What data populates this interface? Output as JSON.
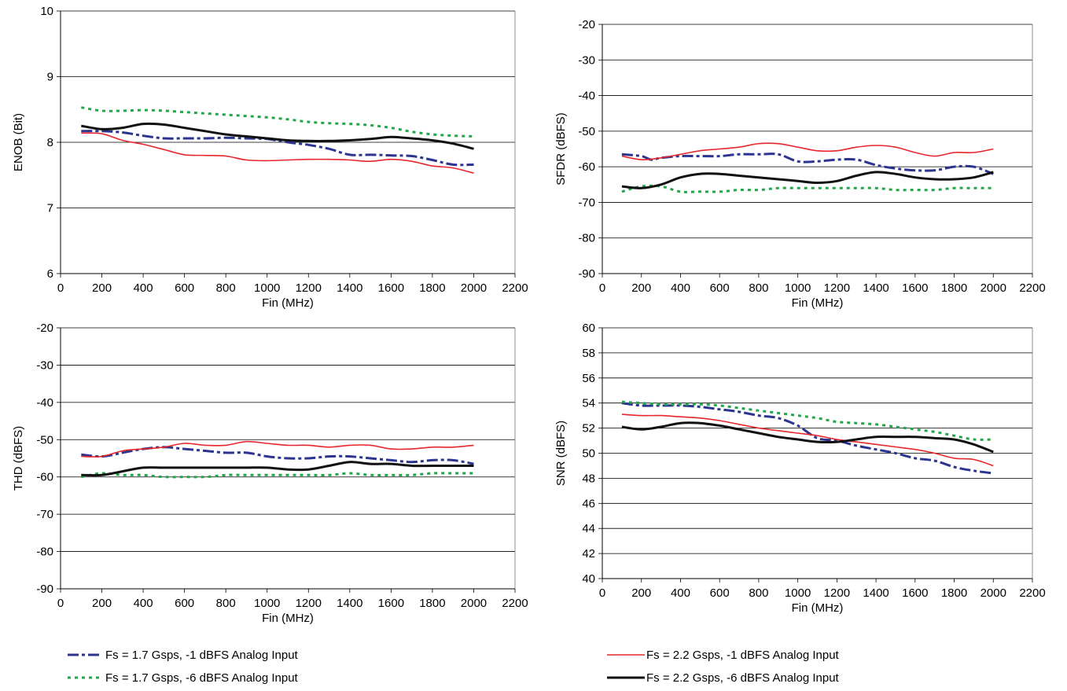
{
  "legend": [
    {
      "name": "Fs = 1.7 Gsps, -1 dBFS Analog Input",
      "color": "#2b3590",
      "style": "dash"
    },
    {
      "name": "Fs = 1.7 Gsps, -6 dBFS Analog Input",
      "color": "#22a64a",
      "style": "dot"
    },
    {
      "name": "Fs = 2.2 Gsps, -1 dBFS Analog Input",
      "color": "#e8262b",
      "style": "solid"
    },
    {
      "name": "Fs = 2.2 Gsps, -6 dBFS Analog Input",
      "color": "#111111",
      "style": "thick"
    }
  ],
  "chart_data": [
    {
      "type": "line",
      "title": "",
      "xlabel": "Fin (MHz)",
      "ylabel": "ENOB (Bit)",
      "xlim": [
        0,
        2200
      ],
      "ylim": [
        6,
        10
      ],
      "xticks": [
        "0",
        "200",
        "400",
        "600",
        "800",
        "1000",
        "1200",
        "1400",
        "1600",
        "1800",
        "2000",
        "2200"
      ],
      "yticks": [
        "6",
        "7",
        "8",
        "9",
        "10"
      ],
      "grid": "horizontal",
      "series": [
        {
          "name": "Fs = 1.7 Gsps, -1 dBFS Analog Input",
          "x": [
            100,
            200,
            300,
            400,
            500,
            600,
            700,
            800,
            900,
            1000,
            1100,
            1200,
            1300,
            1400,
            1500,
            1600,
            1700,
            1800,
            1900,
            2000
          ],
          "values": [
            8.17,
            8.17,
            8.15,
            8.1,
            8.06,
            8.06,
            8.06,
            8.07,
            8.06,
            8.05,
            8.0,
            7.96,
            7.9,
            7.81,
            7.81,
            7.8,
            7.79,
            7.73,
            7.66,
            7.66
          ]
        },
        {
          "name": "Fs = 1.7 Gsps, -6 dBFS Analog Input",
          "x": [
            100,
            200,
            300,
            400,
            500,
            600,
            700,
            800,
            900,
            1000,
            1100,
            1200,
            1300,
            1400,
            1500,
            1600,
            1700,
            1800,
            1900,
            2000
          ],
          "values": [
            8.53,
            8.48,
            8.48,
            8.49,
            8.48,
            8.46,
            8.44,
            8.42,
            8.4,
            8.38,
            8.35,
            8.31,
            8.29,
            8.28,
            8.26,
            8.22,
            8.16,
            8.12,
            8.1,
            8.09
          ]
        },
        {
          "name": "Fs = 2.2 Gsps, -1 dBFS Analog Input",
          "x": [
            100,
            200,
            300,
            400,
            500,
            600,
            700,
            800,
            900,
            1000,
            1100,
            1200,
            1300,
            1400,
            1500,
            1600,
            1700,
            1800,
            1900,
            2000
          ],
          "values": [
            8.14,
            8.13,
            8.03,
            7.97,
            7.89,
            7.81,
            7.8,
            7.79,
            7.73,
            7.72,
            7.73,
            7.74,
            7.74,
            7.73,
            7.71,
            7.74,
            7.71,
            7.64,
            7.61,
            7.53
          ]
        },
        {
          "name": "Fs = 2.2 Gsps, -6 dBFS Analog Input",
          "x": [
            100,
            200,
            300,
            400,
            500,
            600,
            700,
            800,
            900,
            1000,
            1100,
            1200,
            1300,
            1400,
            1500,
            1600,
            1700,
            1800,
            1900,
            2000
          ],
          "values": [
            8.25,
            8.2,
            8.22,
            8.28,
            8.27,
            8.22,
            8.17,
            8.12,
            8.09,
            8.06,
            8.03,
            8.02,
            8.02,
            8.03,
            8.05,
            8.08,
            8.06,
            8.03,
            7.98,
            7.9
          ]
        }
      ]
    },
    {
      "type": "line",
      "title": "",
      "xlabel": "Fin (MHz)",
      "ylabel": "SFDR (dBFS)",
      "xlim": [
        0,
        2200
      ],
      "ylim": [
        -90,
        -20
      ],
      "xticks": [
        "0",
        "200",
        "400",
        "600",
        "800",
        "1000",
        "1200",
        "1400",
        "1600",
        "1800",
        "2000",
        "2200"
      ],
      "yticks": [
        "-90",
        "-80",
        "-70",
        "-60",
        "-50",
        "-40",
        "-30",
        "-20"
      ],
      "grid": "horizontal",
      "series": [
        {
          "name": "Fs = 1.7 Gsps, -1 dBFS Analog Input",
          "x": [
            100,
            200,
            250,
            300,
            400,
            500,
            600,
            700,
            800,
            900,
            1000,
            1100,
            1200,
            1300,
            1400,
            1500,
            1600,
            1700,
            1800,
            1900,
            2000
          ],
          "values": [
            -56.5,
            -57,
            -58,
            -57.5,
            -57,
            -57,
            -57,
            -56.5,
            -56.5,
            -56.5,
            -58.5,
            -58.5,
            -58,
            -58,
            -59.5,
            -60.5,
            -61,
            -61,
            -60,
            -60,
            -62
          ]
        },
        {
          "name": "Fs = 1.7 Gsps, -6 dBFS Analog Input",
          "x": [
            100,
            200,
            300,
            400,
            500,
            600,
            700,
            800,
            900,
            1000,
            1100,
            1200,
            1300,
            1400,
            1500,
            1600,
            1700,
            1800,
            1900,
            2000
          ],
          "values": [
            -67,
            -65.5,
            -65.5,
            -67,
            -67,
            -67,
            -66.5,
            -66.5,
            -66,
            -66,
            -66,
            -66,
            -66,
            -66,
            -66.5,
            -66.5,
            -66.5,
            -66,
            -66,
            -66
          ]
        },
        {
          "name": "Fs = 2.2 Gsps, -1 dBFS Analog Input",
          "x": [
            100,
            200,
            300,
            400,
            500,
            600,
            700,
            800,
            900,
            1000,
            1100,
            1200,
            1300,
            1400,
            1500,
            1600,
            1700,
            1800,
            1900,
            2000
          ],
          "values": [
            -57,
            -58,
            -57.5,
            -56.5,
            -55.5,
            -55,
            -54.5,
            -53.5,
            -53.5,
            -54.5,
            -55.5,
            -55.5,
            -54.5,
            -54,
            -54.5,
            -56,
            -57,
            -56,
            -56,
            -55
          ]
        },
        {
          "name": "Fs = 2.2 Gsps, -6 dBFS Analog Input",
          "x": [
            100,
            200,
            300,
            400,
            500,
            600,
            700,
            800,
            900,
            1000,
            1100,
            1200,
            1300,
            1400,
            1500,
            1600,
            1700,
            1800,
            1900,
            2000
          ],
          "values": [
            -65.5,
            -66,
            -65,
            -63,
            -62,
            -62,
            -62.5,
            -63,
            -63.5,
            -64,
            -64.5,
            -64,
            -62.5,
            -61.5,
            -62,
            -63,
            -63.5,
            -63.5,
            -63,
            -61.5
          ]
        }
      ]
    },
    {
      "type": "line",
      "title": "",
      "xlabel": "Fin (MHz)",
      "ylabel": "THD (dBFS)",
      "xlim": [
        0,
        2200
      ],
      "ylim": [
        -90,
        -20
      ],
      "xticks": [
        "0",
        "200",
        "400",
        "600",
        "800",
        "1000",
        "1200",
        "1400",
        "1600",
        "1800",
        "2000",
        "2200"
      ],
      "yticks": [
        "-90",
        "-80",
        "-70",
        "-60",
        "-50",
        "-40",
        "-30",
        "-20"
      ],
      "grid": "horizontal",
      "series": [
        {
          "name": "Fs = 1.7 Gsps, -1 dBFS Analog Input",
          "x": [
            100,
            200,
            300,
            400,
            500,
            600,
            700,
            800,
            900,
            1000,
            1100,
            1200,
            1300,
            1400,
            1500,
            1600,
            1700,
            1800,
            1900,
            2000
          ],
          "values": [
            -54,
            -54.5,
            -53.5,
            -52.5,
            -52,
            -52.5,
            -53,
            -53.5,
            -53.5,
            -54.5,
            -55,
            -55,
            -54.5,
            -54.5,
            -55,
            -55.5,
            -56,
            -55.5,
            -55.5,
            -56.5
          ]
        },
        {
          "name": "Fs = 1.7 Gsps, -6 dBFS Analog Input",
          "x": [
            100,
            200,
            300,
            400,
            500,
            600,
            700,
            800,
            900,
            1000,
            1100,
            1200,
            1300,
            1400,
            1500,
            1600,
            1700,
            1800,
            1900,
            2000
          ],
          "values": [
            -60,
            -59,
            -59.5,
            -59.5,
            -60,
            -60,
            -60,
            -59.5,
            -59.5,
            -59.5,
            -59.5,
            -59.5,
            -59.5,
            -59,
            -59.5,
            -59.5,
            -59.5,
            -59,
            -59,
            -59
          ]
        },
        {
          "name": "Fs = 2.2 Gsps, -1 dBFS Analog Input",
          "x": [
            100,
            200,
            300,
            400,
            500,
            600,
            700,
            800,
            900,
            1000,
            1100,
            1200,
            1300,
            1400,
            1500,
            1600,
            1700,
            1800,
            1900,
            2000
          ],
          "values": [
            -54.5,
            -54.5,
            -53,
            -52.5,
            -52,
            -51,
            -51.5,
            -51.5,
            -50.5,
            -51,
            -51.5,
            -51.5,
            -52,
            -51.5,
            -51.5,
            -52.5,
            -52.5,
            -52,
            -52,
            -51.5
          ]
        },
        {
          "name": "Fs = 2.2 Gsps, -6 dBFS Analog Input",
          "x": [
            100,
            200,
            300,
            400,
            500,
            600,
            700,
            800,
            900,
            1000,
            1100,
            1200,
            1300,
            1400,
            1500,
            1600,
            1700,
            1800,
            1900,
            2000
          ],
          "values": [
            -59.5,
            -59.5,
            -58.5,
            -57.5,
            -57.5,
            -57.5,
            -57.5,
            -57.5,
            -57.5,
            -57.5,
            -58,
            -58,
            -57,
            -56,
            -56.5,
            -56.5,
            -57,
            -57,
            -57,
            -57
          ]
        }
      ]
    },
    {
      "type": "line",
      "title": "",
      "xlabel": "Fin (MHz)",
      "ylabel": "SNR (dBFS)",
      "xlim": [
        0,
        2200
      ],
      "ylim": [
        40,
        60
      ],
      "xticks": [
        "0",
        "200",
        "400",
        "600",
        "800",
        "1000",
        "1200",
        "1400",
        "1600",
        "1800",
        "2000",
        "2200"
      ],
      "yticks": [
        "40",
        "42",
        "44",
        "46",
        "48",
        "50",
        "52",
        "54",
        "56",
        "58",
        "60"
      ],
      "grid": "horizontal",
      "series": [
        {
          "name": "Fs = 1.7 Gsps, -1 dBFS Analog Input",
          "x": [
            100,
            200,
            300,
            400,
            500,
            600,
            700,
            800,
            900,
            1000,
            1100,
            1200,
            1300,
            1400,
            1500,
            1600,
            1700,
            1800,
            1900,
            2000
          ],
          "values": [
            54.0,
            53.8,
            53.8,
            53.8,
            53.7,
            53.5,
            53.3,
            53.0,
            52.8,
            52.2,
            51.2,
            51.0,
            50.6,
            50.3,
            50.0,
            49.6,
            49.4,
            48.9,
            48.6,
            48.4
          ]
        },
        {
          "name": "Fs = 1.7 Gsps, -6 dBFS Analog Input",
          "x": [
            100,
            200,
            300,
            400,
            500,
            600,
            700,
            800,
            900,
            1000,
            1100,
            1200,
            1300,
            1400,
            1500,
            1600,
            1700,
            1800,
            1900,
            2000
          ],
          "values": [
            54.1,
            54.0,
            53.9,
            53.9,
            53.9,
            53.8,
            53.6,
            53.4,
            53.2,
            53.0,
            52.8,
            52.5,
            52.4,
            52.3,
            52.1,
            51.9,
            51.7,
            51.4,
            51.1,
            51.1
          ]
        },
        {
          "name": "Fs = 2.2 Gsps, -1 dBFS Analog Input",
          "x": [
            100,
            200,
            300,
            400,
            500,
            600,
            700,
            800,
            900,
            1000,
            1100,
            1200,
            1300,
            1400,
            1500,
            1600,
            1700,
            1800,
            1900,
            2000
          ],
          "values": [
            53.1,
            53.0,
            53.0,
            52.9,
            52.8,
            52.6,
            52.3,
            52.0,
            51.8,
            51.6,
            51.4,
            51.1,
            50.9,
            50.7,
            50.5,
            50.3,
            50.0,
            49.6,
            49.5,
            49.0
          ]
        },
        {
          "name": "Fs = 2.2 Gsps, -6 dBFS Analog Input",
          "x": [
            100,
            200,
            300,
            400,
            500,
            600,
            700,
            800,
            900,
            1000,
            1100,
            1200,
            1300,
            1400,
            1500,
            1600,
            1700,
            1800,
            1900,
            2000
          ],
          "values": [
            52.1,
            51.9,
            52.1,
            52.4,
            52.4,
            52.2,
            51.9,
            51.6,
            51.3,
            51.1,
            50.9,
            50.9,
            51.1,
            51.3,
            51.3,
            51.3,
            51.2,
            51.1,
            50.7,
            50.1
          ]
        }
      ]
    }
  ]
}
